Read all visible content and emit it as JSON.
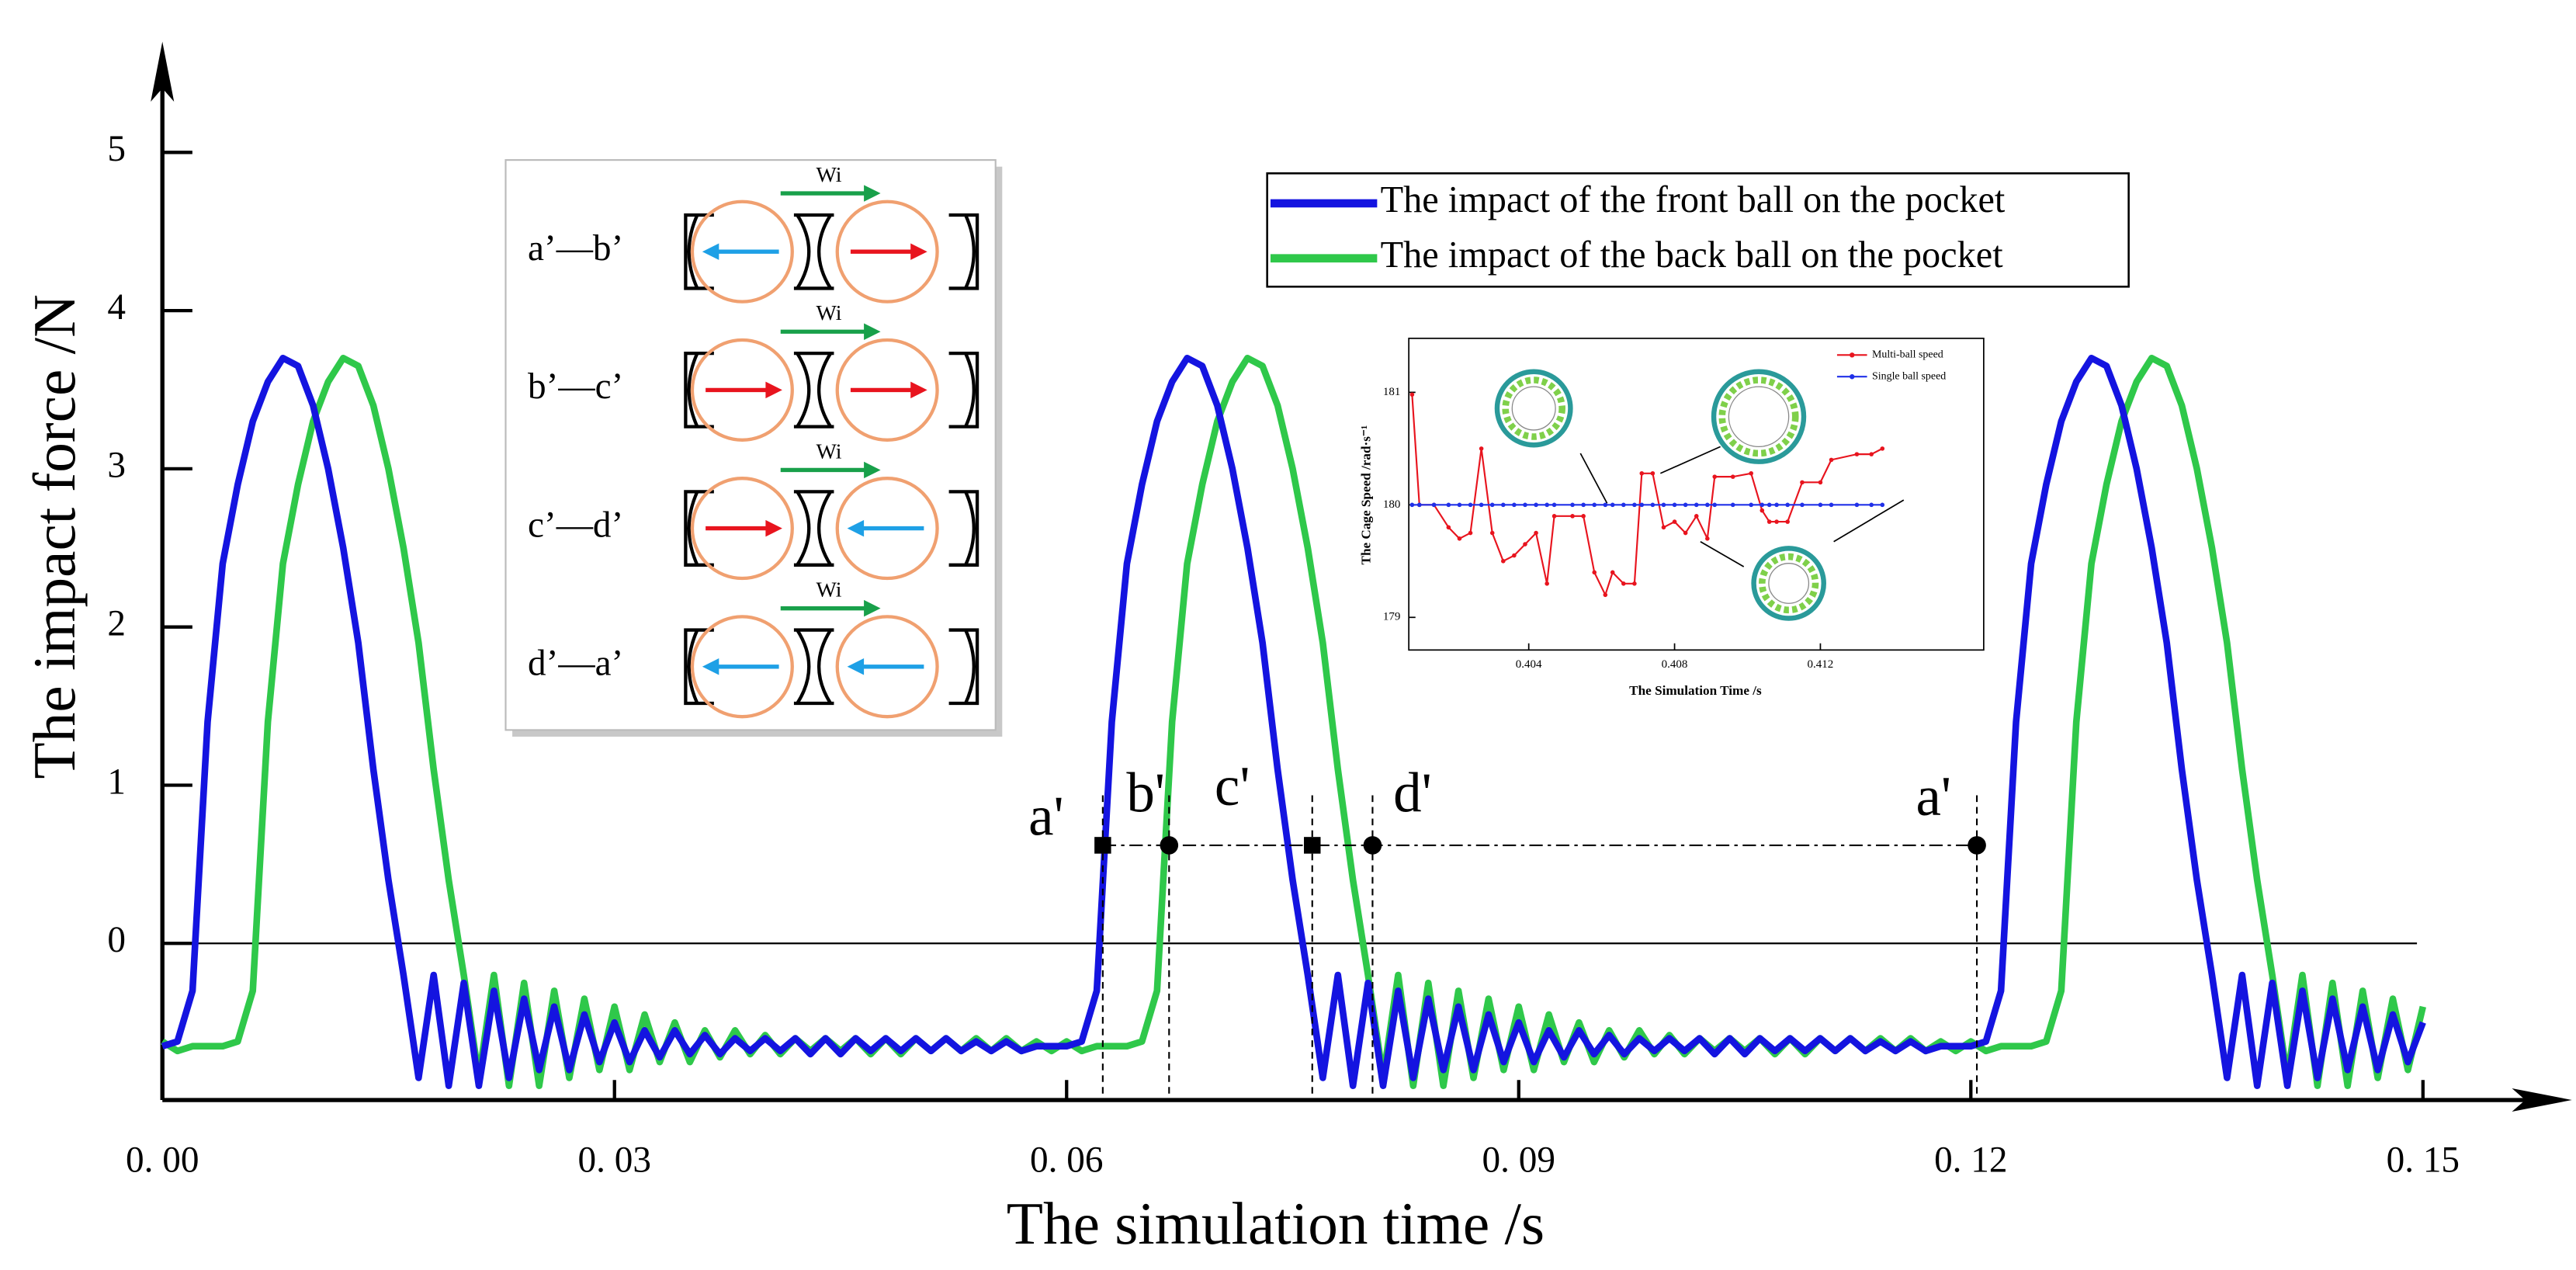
{
  "chart_data": [
    {
      "type": "line",
      "xlabel": "The simulation time /s",
      "ylabel": "The impact force /N",
      "xlim": [
        0,
        0.159
      ],
      "ylim": [
        -0.99,
        5.7
      ],
      "xticks": [
        {
          "value": 0,
          "label": "0. 00"
        },
        {
          "value": 0.03,
          "label": "0. 03"
        },
        {
          "value": 0.06,
          "label": "0. 06"
        },
        {
          "value": 0.09,
          "label": "0. 09"
        },
        {
          "value": 0.12,
          "label": "0. 12"
        },
        {
          "value": 0.15,
          "label": "0. 15"
        }
      ],
      "yticks": [
        0,
        1,
        2,
        3,
        4,
        5
      ],
      "grid": false,
      "zero_line": true,
      "legend": "upper right",
      "x": [
        0,
        0.001,
        0.002,
        0.003,
        0.004,
        0.005,
        0.006,
        0.007,
        0.008,
        0.009,
        0.01,
        0.011,
        0.012,
        0.013,
        0.014,
        0.015,
        0.016,
        0.017,
        0.018,
        0.019,
        0.02,
        0.021,
        0.022,
        0.023,
        0.024,
        0.025,
        0.026,
        0.027,
        0.028,
        0.029,
        0.03,
        0.031,
        0.032,
        0.033,
        0.034,
        0.035,
        0.036,
        0.037,
        0.038,
        0.039,
        0.04,
        0.041,
        0.042,
        0.043,
        0.044,
        0.045,
        0.046,
        0.047,
        0.048,
        0.049,
        0.05,
        0.051,
        0.052,
        0.053,
        0.054,
        0.055,
        0.056,
        0.057,
        0.058,
        0.059,
        0.06,
        0.061,
        0.062,
        0.063,
        0.064,
        0.065,
        0.066,
        0.067,
        0.068,
        0.069,
        0.07,
        0.071,
        0.072,
        0.073,
        0.074,
        0.075,
        0.076,
        0.077,
        0.078,
        0.079,
        0.08,
        0.081,
        0.082,
        0.083,
        0.084,
        0.085,
        0.086,
        0.087,
        0.088,
        0.089,
        0.09,
        0.091,
        0.092,
        0.093,
        0.094,
        0.095,
        0.096,
        0.097,
        0.098,
        0.099,
        0.1,
        0.101,
        0.102,
        0.103,
        0.104,
        0.105,
        0.106,
        0.107,
        0.108,
        0.109,
        0.11,
        0.111,
        0.112,
        0.113,
        0.114,
        0.115,
        0.116,
        0.117,
        0.118,
        0.119,
        0.12,
        0.121,
        0.122,
        0.123,
        0.124,
        0.125,
        0.126,
        0.127,
        0.128,
        0.129,
        0.13,
        0.131,
        0.132,
        0.133,
        0.134,
        0.135,
        0.136,
        0.137,
        0.138,
        0.139,
        0.14,
        0.141,
        0.142,
        0.143,
        0.144,
        0.145,
        0.146,
        0.147,
        0.148,
        0.149,
        0.15
      ],
      "series": [
        {
          "name": "The impact of the back ball on the pocket",
          "color": "#2fc84a",
          "values": [
            -0.62,
            -0.68,
            -0.65,
            -0.65,
            -0.65,
            -0.62,
            -0.3,
            1.4,
            2.4,
            2.9,
            3.3,
            3.55,
            3.7,
            3.65,
            3.4,
            3,
            2.5,
            1.9,
            1.1,
            0.4,
            -0.2,
            -0.85,
            -0.2,
            -0.9,
            -0.25,
            -0.9,
            -0.3,
            -0.85,
            -0.35,
            -0.8,
            -0.4,
            -0.8,
            -0.45,
            -0.75,
            -0.5,
            -0.75,
            -0.55,
            -0.72,
            -0.55,
            -0.7,
            -0.58,
            -0.7,
            -0.6,
            -0.68,
            -0.6,
            -0.68,
            -0.6,
            -0.7,
            -0.6,
            -0.7,
            -0.6,
            -0.68,
            -0.6,
            -0.68,
            -0.6,
            -0.68,
            -0.6,
            -0.68,
            -0.62,
            -0.68,
            -0.62,
            -0.68,
            -0.65,
            -0.65,
            -0.65,
            -0.62,
            -0.3,
            1.4,
            2.4,
            2.9,
            3.3,
            3.55,
            3.7,
            3.65,
            3.4,
            3,
            2.5,
            1.9,
            1.1,
            0.4,
            -0.2,
            -0.85,
            -0.2,
            -0.9,
            -0.25,
            -0.9,
            -0.3,
            -0.85,
            -0.35,
            -0.8,
            -0.4,
            -0.8,
            -0.45,
            -0.75,
            -0.5,
            -0.75,
            -0.55,
            -0.72,
            -0.55,
            -0.7,
            -0.58,
            -0.7,
            -0.6,
            -0.68,
            -0.6,
            -0.68,
            -0.6,
            -0.7,
            -0.6,
            -0.7,
            -0.6,
            -0.68,
            -0.6,
            -0.68,
            -0.6,
            -0.68,
            -0.6,
            -0.68,
            -0.62,
            -0.68,
            -0.62,
            -0.68,
            -0.65,
            -0.65,
            -0.65,
            -0.62,
            -0.3,
            1.4,
            2.4,
            2.9,
            3.3,
            3.55,
            3.7,
            3.65,
            3.4,
            3,
            2.5,
            1.9,
            1.1,
            0.4,
            -0.2,
            -0.85,
            -0.2,
            -0.9,
            -0.25,
            -0.9,
            -0.3,
            -0.85,
            -0.35,
            -0.8,
            -0.4
          ]
        },
        {
          "name": "The impact of the front ball on the pocket",
          "color": "#1414e0",
          "values": [
            -0.65,
            -0.62,
            -0.3,
            1.4,
            2.4,
            2.9,
            3.3,
            3.55,
            3.7,
            3.65,
            3.4,
            3,
            2.5,
            1.9,
            1.1,
            0.4,
            -0.2,
            -0.85,
            -0.2,
            -0.9,
            -0.25,
            -0.9,
            -0.3,
            -0.85,
            -0.35,
            -0.8,
            -0.4,
            -0.8,
            -0.45,
            -0.75,
            -0.5,
            -0.75,
            -0.55,
            -0.72,
            -0.55,
            -0.7,
            -0.58,
            -0.7,
            -0.6,
            -0.68,
            -0.6,
            -0.68,
            -0.6,
            -0.7,
            -0.6,
            -0.7,
            -0.6,
            -0.68,
            -0.6,
            -0.68,
            -0.6,
            -0.68,
            -0.6,
            -0.68,
            -0.62,
            -0.68,
            -0.62,
            -0.68,
            -0.65,
            -0.65,
            -0.65,
            -0.62,
            -0.3,
            1.4,
            2.4,
            2.9,
            3.3,
            3.55,
            3.7,
            3.65,
            3.4,
            3,
            2.5,
            1.9,
            1.1,
            0.4,
            -0.2,
            -0.85,
            -0.2,
            -0.9,
            -0.25,
            -0.9,
            -0.3,
            -0.85,
            -0.35,
            -0.8,
            -0.4,
            -0.8,
            -0.45,
            -0.75,
            -0.5,
            -0.75,
            -0.55,
            -0.72,
            -0.55,
            -0.7,
            -0.58,
            -0.7,
            -0.6,
            -0.68,
            -0.6,
            -0.68,
            -0.6,
            -0.7,
            -0.6,
            -0.7,
            -0.6,
            -0.68,
            -0.6,
            -0.68,
            -0.6,
            -0.68,
            -0.6,
            -0.68,
            -0.62,
            -0.68,
            -0.62,
            -0.68,
            -0.65,
            -0.65,
            -0.65,
            -0.62,
            -0.3,
            1.4,
            2.4,
            2.9,
            3.3,
            3.55,
            3.7,
            3.65,
            3.4,
            3,
            2.5,
            1.9,
            1.1,
            0.4,
            -0.2,
            -0.85,
            -0.2,
            -0.9,
            -0.25,
            -0.9,
            -0.3,
            -0.85,
            -0.35,
            -0.8,
            -0.4,
            -0.8,
            -0.45,
            -0.75,
            -0.5
          ]
        }
      ],
      "annotations": [
        {
          "text": "a'",
          "x": 0.0624,
          "y": 0.62
        },
        {
          "text": "b'",
          "x": 0.0668,
          "y": 0.62
        },
        {
          "text": "c'",
          "x": 0.0763,
          "y": 0.62
        },
        {
          "text": "d'",
          "x": 0.0803,
          "y": 0.62
        },
        {
          "text": "a'",
          "x": 0.1204,
          "y": 0.62
        }
      ]
    },
    {
      "type": "line",
      "xlabel": "The Simulation Time /s",
      "ylabel": "The Cage Speed /rad·s⁻¹",
      "xlim": [
        0.40071,
        0.41648
      ],
      "ylim": [
        178.71,
        181.48
      ],
      "xticks": [
        0.404,
        0.408,
        0.412
      ],
      "yticks": [
        179,
        180,
        181
      ],
      "legend": "upper right",
      "x": [
        0.4008,
        0.401,
        0.4014,
        0.4018,
        0.4021,
        0.4024,
        0.4027,
        0.403,
        0.4033,
        0.4036,
        0.4039,
        0.4042,
        0.4045,
        0.4047,
        0.4052,
        0.4055,
        0.4058,
        0.4061,
        0.4063,
        0.4066,
        0.4069,
        0.4071,
        0.4074,
        0.4077,
        0.408,
        0.4083,
        0.4086,
        0.4089,
        0.4091,
        0.4096,
        0.4101,
        0.4104,
        0.4106,
        0.4108,
        0.4111,
        0.4115,
        0.412,
        0.4123,
        0.413,
        0.4134,
        0.4137
      ],
      "series": [
        {
          "name": "Multi-ball speed",
          "color": "#e8141e",
          "values": [
            180.98,
            180,
            180,
            179.8,
            179.7,
            179.75,
            180.5,
            179.75,
            179.5,
            179.55,
            179.65,
            179.75,
            179.3,
            179.9,
            179.9,
            179.9,
            179.4,
            179.2,
            179.4,
            179.3,
            179.3,
            180.28,
            180.28,
            179.8,
            179.85,
            179.75,
            179.9,
            179.7,
            180.25,
            180.25,
            180.28,
            179.95,
            179.85,
            179.85,
            179.85,
            180.2,
            180.2,
            180.4,
            180.45,
            180.45,
            180.5
          ]
        },
        {
          "name": "Single ball speed",
          "color": "#2030e8",
          "values": [
            180,
            180,
            180,
            180,
            180,
            180,
            180,
            180,
            180,
            180,
            180,
            180,
            180,
            180,
            180,
            180,
            180,
            180,
            180,
            180,
            180,
            180,
            180,
            180,
            180,
            180,
            180,
            180,
            180,
            180,
            180,
            180,
            180,
            180,
            180,
            180,
            180,
            180,
            180,
            180,
            180
          ]
        }
      ]
    }
  ],
  "inset_diagram": {
    "labels": [
      "a’—b’",
      "b’—c’",
      "c’—d’",
      "d’—a’"
    ],
    "force_label": "Wi"
  }
}
